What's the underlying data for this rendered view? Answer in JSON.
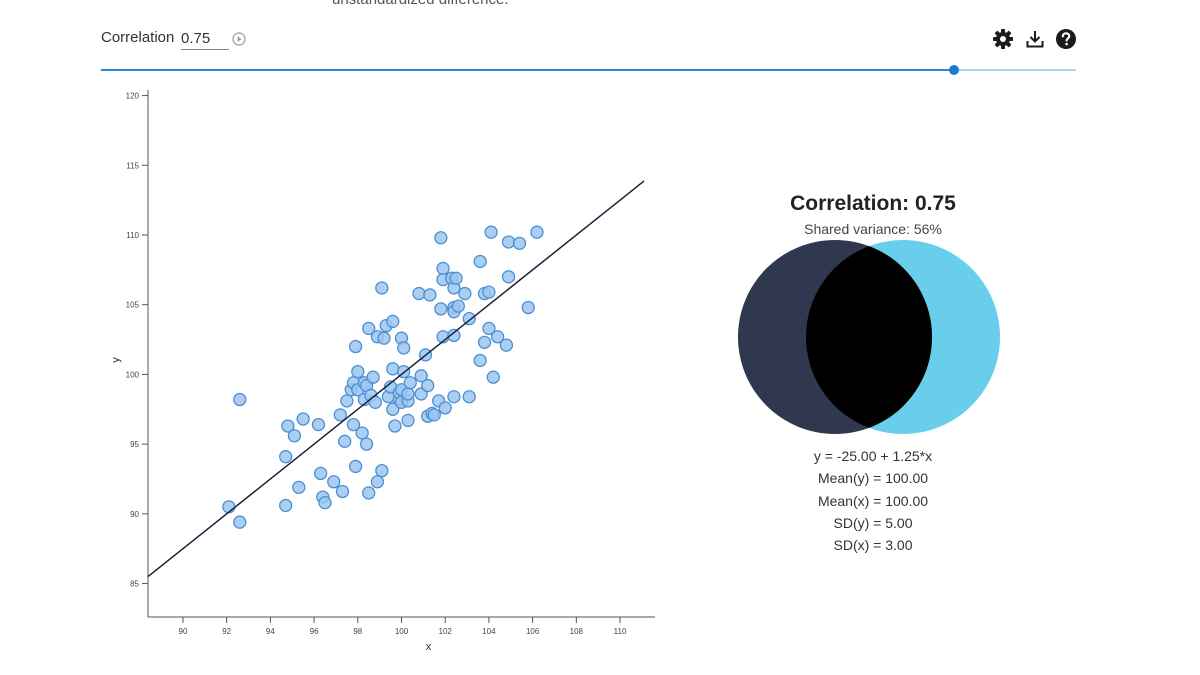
{
  "header": {
    "clipped_text": "unstandardized difference.",
    "correlation_label": "Correlation",
    "correlation_value": "0.75",
    "slider_value": 0.875
  },
  "icons": {
    "play": "play-circle-icon",
    "settings": "gear-icon",
    "download": "download-icon",
    "help": "help-icon"
  },
  "colors": {
    "accent": "#1f7ad6",
    "point_fill": "#9cc6ef",
    "point_stroke": "#4a8fd6",
    "line": "#1a2238",
    "venn_left": "#30384f",
    "venn_right": "#68ceeb",
    "venn_overlap": "#000000"
  },
  "chart_data": {
    "type": "scatter",
    "xlabel": "x",
    "ylabel": "y",
    "xlim": [
      88.4,
      111.6
    ],
    "ylim": [
      82.6,
      120.4
    ],
    "xticks": [
      90,
      92,
      94,
      96,
      98,
      100,
      102,
      104,
      106,
      108,
      110
    ],
    "yticks": [
      85,
      90,
      95,
      100,
      105,
      110,
      115,
      120
    ],
    "grid": false,
    "regression": {
      "intercept": -25.0,
      "slope": 1.25
    },
    "points": [
      [
        92.1,
        90.5
      ],
      [
        92.6,
        89.4
      ],
      [
        92.6,
        98.2
      ],
      [
        94.8,
        96.3
      ],
      [
        94.7,
        94.1
      ],
      [
        94.7,
        90.6
      ],
      [
        95.1,
        95.6
      ],
      [
        95.3,
        91.9
      ],
      [
        95.5,
        96.8
      ],
      [
        96.2,
        96.4
      ],
      [
        96.3,
        92.9
      ],
      [
        96.4,
        91.2
      ],
      [
        96.5,
        90.8
      ],
      [
        96.9,
        92.3
      ],
      [
        97.2,
        97.1
      ],
      [
        97.3,
        91.6
      ],
      [
        97.4,
        95.2
      ],
      [
        97.5,
        98.1
      ],
      [
        97.7,
        98.9
      ],
      [
        97.8,
        96.4
      ],
      [
        97.8,
        99.4
      ],
      [
        97.9,
        102.0
      ],
      [
        97.9,
        93.4
      ],
      [
        98.0,
        100.2
      ],
      [
        98.0,
        98.9
      ],
      [
        98.2,
        95.8
      ],
      [
        98.3,
        98.2
      ],
      [
        98.3,
        99.4
      ],
      [
        98.4,
        99.2
      ],
      [
        98.4,
        95.0
      ],
      [
        98.5,
        103.3
      ],
      [
        98.5,
        91.5
      ],
      [
        98.6,
        98.5
      ],
      [
        98.7,
        99.8
      ],
      [
        98.8,
        98.0
      ],
      [
        98.9,
        92.3
      ],
      [
        98.9,
        102.7
      ],
      [
        99.1,
        93.1
      ],
      [
        99.1,
        106.2
      ],
      [
        99.2,
        102.6
      ],
      [
        99.3,
        103.5
      ],
      [
        99.4,
        98.4
      ],
      [
        99.5,
        99.1
      ],
      [
        99.6,
        100.4
      ],
      [
        99.6,
        97.5
      ],
      [
        99.6,
        103.8
      ],
      [
        99.7,
        96.3
      ],
      [
        99.9,
        98.2
      ],
      [
        99.9,
        98.7
      ],
      [
        100.0,
        98.0
      ],
      [
        100.0,
        102.6
      ],
      [
        100.0,
        98.9
      ],
      [
        100.1,
        100.2
      ],
      [
        100.1,
        101.9
      ],
      [
        100.3,
        98.1
      ],
      [
        100.3,
        96.7
      ],
      [
        100.3,
        98.6
      ],
      [
        100.4,
        99.4
      ],
      [
        100.8,
        105.8
      ],
      [
        100.9,
        98.6
      ],
      [
        100.9,
        99.9
      ],
      [
        101.1,
        101.4
      ],
      [
        101.2,
        99.2
      ],
      [
        101.2,
        97.0
      ],
      [
        101.3,
        105.7
      ],
      [
        101.4,
        97.2
      ],
      [
        101.5,
        97.1
      ],
      [
        101.7,
        98.1
      ],
      [
        101.8,
        104.7
      ],
      [
        101.8,
        109.8
      ],
      [
        101.9,
        107.6
      ],
      [
        101.9,
        106.8
      ],
      [
        101.9,
        102.7
      ],
      [
        102.0,
        97.6
      ],
      [
        102.3,
        106.9
      ],
      [
        102.4,
        104.8
      ],
      [
        102.4,
        104.5
      ],
      [
        102.4,
        106.2
      ],
      [
        102.4,
        102.8
      ],
      [
        102.4,
        98.4
      ],
      [
        102.5,
        106.9
      ],
      [
        102.6,
        104.9
      ],
      [
        102.9,
        105.8
      ],
      [
        103.1,
        104.0
      ],
      [
        103.1,
        98.4
      ],
      [
        103.6,
        108.1
      ],
      [
        103.6,
        101.0
      ],
      [
        103.8,
        102.3
      ],
      [
        103.8,
        105.8
      ],
      [
        104.0,
        103.3
      ],
      [
        104.0,
        105.9
      ],
      [
        104.1,
        110.2
      ],
      [
        104.2,
        99.8
      ],
      [
        104.4,
        102.7
      ],
      [
        104.8,
        102.1
      ],
      [
        104.9,
        107.0
      ],
      [
        104.9,
        109.5
      ],
      [
        105.4,
        109.4
      ],
      [
        105.8,
        104.8
      ],
      [
        106.2,
        110.2
      ]
    ]
  },
  "venn": {
    "title": "Correlation: 0.75",
    "subtitle": "Shared variance: 56%",
    "shared_variance": 0.5625
  },
  "stats": {
    "equation": "y = -25.00 + 1.25*x",
    "mean_y": "Mean(y) = 100.00",
    "mean_x": "Mean(x) = 100.00",
    "sd_y": "SD(y) = 5.00",
    "sd_x": "SD(x) = 3.00"
  }
}
